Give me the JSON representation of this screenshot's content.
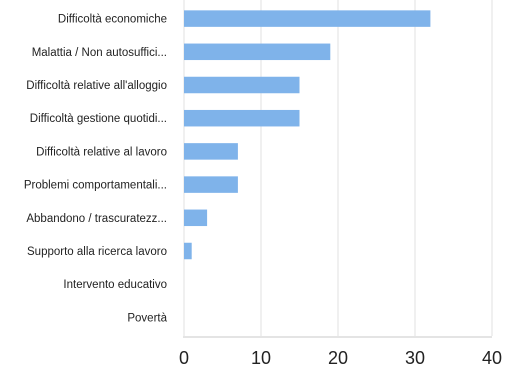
{
  "chart_data": {
    "type": "bar",
    "orientation": "horizontal",
    "categories": [
      "Difficoltà economiche",
      "Malattia / Non autosuffici...",
      "Difficoltà relative all'alloggio",
      "Difficoltà gestione quotidi...",
      "Difficoltà relative al lavoro",
      "Problemi comportamentali...",
      "Abbandono / trascuratezz...",
      "Supporto alla ricerca lavoro",
      "Intervento educativo",
      "Povertà"
    ],
    "values": [
      32,
      19,
      15,
      15,
      7,
      7,
      3,
      1,
      0,
      0
    ],
    "title": "",
    "xlabel": "",
    "ylabel": "",
    "xlim": [
      0,
      40
    ],
    "xticks": [
      0,
      10,
      20,
      30,
      40
    ],
    "grid": true,
    "legend": "none",
    "bar_color": "#7fb3ea"
  }
}
